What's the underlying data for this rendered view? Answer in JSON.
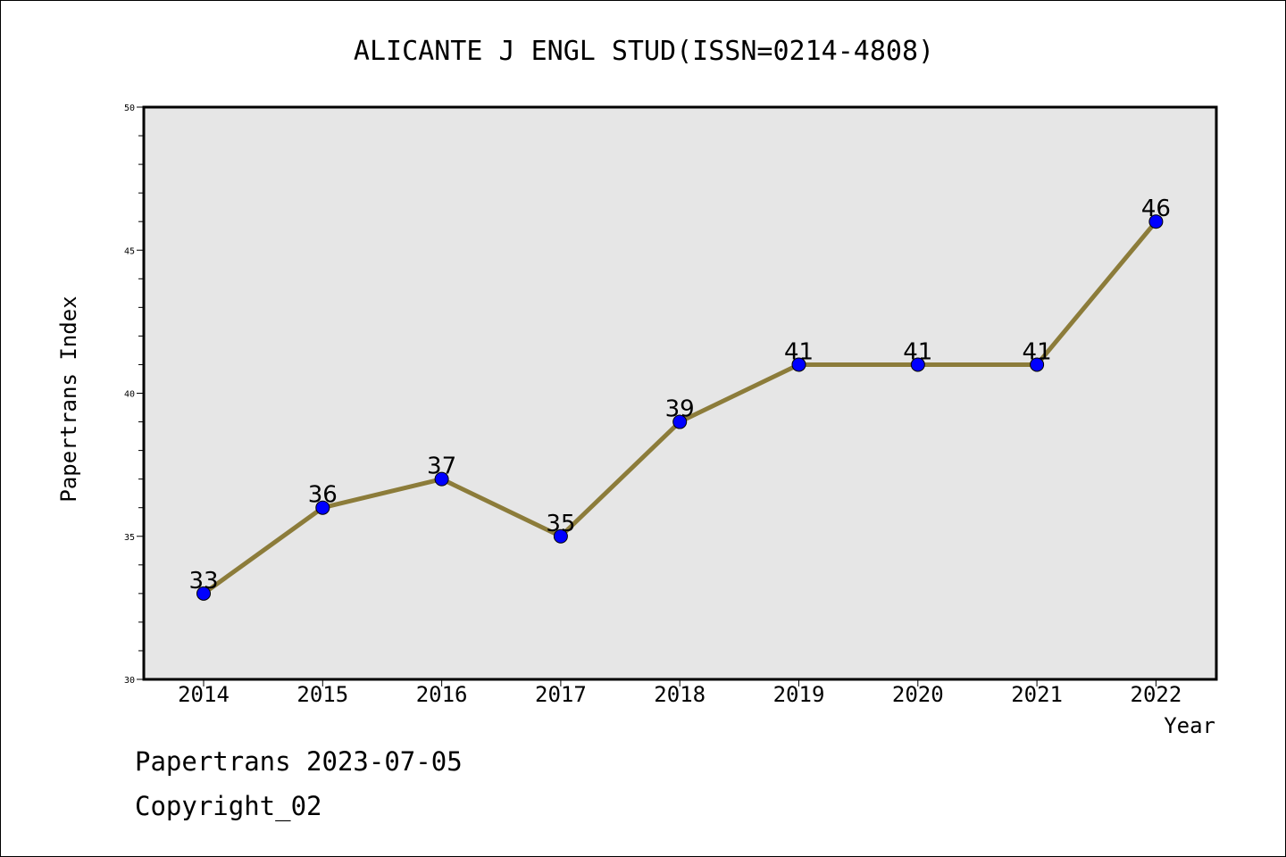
{
  "chart_data": {
    "type": "line",
    "title": "ALICANTE J ENGL STUD(ISSN=0214-4808)",
    "xlabel": "Year",
    "ylabel": "Papertrans Index",
    "x": [
      "2014",
      "2015",
      "2016",
      "2017",
      "2018",
      "2019",
      "2020",
      "2021",
      "2022"
    ],
    "series": [
      {
        "values": [
          33,
          36,
          37,
          35,
          39,
          41,
          41,
          41,
          46
        ]
      }
    ],
    "data_labels": [
      "33",
      "36",
      "37",
      "35",
      "39",
      "41",
      "41",
      "41",
      "46"
    ],
    "ylim": [
      30,
      50
    ],
    "y_ticks": [
      "30",
      "35",
      "40",
      "45",
      "50"
    ],
    "grid": false,
    "colors": {
      "line": "#8c7c3a",
      "marker": "#0000ff",
      "plot_bg": "#e6e6e6"
    }
  },
  "footer": {
    "date_line": "Papertrans 2023-07-05",
    "copyright": "Copyright_02"
  }
}
